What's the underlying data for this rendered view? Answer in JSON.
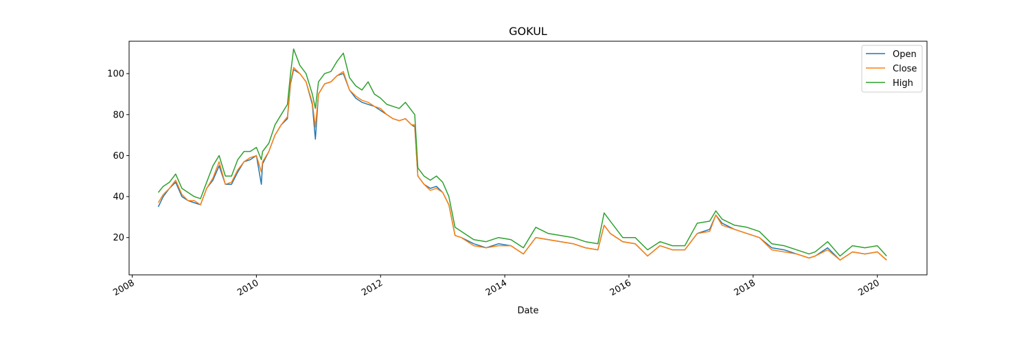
{
  "chart_data": {
    "type": "line",
    "title": "GOKUL",
    "xlabel": "Date",
    "ylabel": "",
    "x_ticks": [
      "2008",
      "2010",
      "2012",
      "2014",
      "2016",
      "2018",
      "2020"
    ],
    "y_ticks": [
      "20",
      "40",
      "60",
      "80",
      "100"
    ],
    "xlim": [
      2007.95,
      2020.8
    ],
    "ylim": [
      1.8,
      115.8
    ],
    "grid": false,
    "legend_position": "top-right",
    "x": [
      2008.42,
      2008.5,
      2008.6,
      2008.7,
      2008.8,
      2008.9,
      2009.0,
      2009.1,
      2009.2,
      2009.3,
      2009.4,
      2009.5,
      2009.6,
      2009.7,
      2009.8,
      2009.9,
      2010.0,
      2010.08,
      2010.1,
      2010.2,
      2010.3,
      2010.4,
      2010.5,
      2010.55,
      2010.6,
      2010.7,
      2010.8,
      2010.9,
      2010.95,
      2011.0,
      2011.1,
      2011.2,
      2011.3,
      2011.4,
      2011.5,
      2011.6,
      2011.7,
      2011.8,
      2011.9,
      2012.0,
      2012.1,
      2012.2,
      2012.3,
      2012.4,
      2012.5,
      2012.55,
      2012.6,
      2012.7,
      2012.8,
      2012.9,
      2013.0,
      2013.1,
      2013.2,
      2013.3,
      2013.5,
      2013.7,
      2013.9,
      2014.1,
      2014.3,
      2014.5,
      2014.7,
      2014.9,
      2015.1,
      2015.3,
      2015.5,
      2015.6,
      2015.7,
      2015.9,
      2016.1,
      2016.3,
      2016.5,
      2016.7,
      2016.9,
      2017.1,
      2017.3,
      2017.4,
      2017.5,
      2017.7,
      2017.9,
      2018.1,
      2018.3,
      2018.5,
      2018.7,
      2018.9,
      2019.0,
      2019.2,
      2019.4,
      2019.6,
      2019.8,
      2020.0,
      2020.15
    ],
    "series": [
      {
        "name": "Open",
        "color": "#1f77b4",
        "values": [
          35,
          40,
          44,
          47,
          40,
          38,
          37,
          36,
          44,
          48,
          55,
          46,
          46,
          52,
          57,
          58,
          60,
          46,
          56,
          62,
          70,
          75,
          78,
          95,
          102,
          100,
          96,
          85,
          68,
          90,
          95,
          96,
          99,
          100,
          92,
          88,
          86,
          85,
          84,
          82,
          80,
          78,
          77,
          78,
          75,
          74,
          50,
          46,
          44,
          45,
          42,
          36,
          21,
          20,
          17,
          15,
          17,
          16,
          12,
          20,
          19,
          18,
          17,
          15,
          14,
          26,
          22,
          18,
          17,
          11,
          16,
          14,
          14,
          22,
          24,
          31,
          27,
          24,
          22,
          20,
          15,
          14,
          12,
          10,
          11,
          15,
          9,
          13,
          12,
          13,
          9
        ]
      },
      {
        "name": "Close",
        "color": "#ff7f0e",
        "values": [
          37,
          41,
          44,
          48,
          41,
          38,
          38,
          36,
          44,
          49,
          57,
          46,
          47,
          53,
          57,
          59,
          60,
          52,
          57,
          62,
          70,
          75,
          79,
          96,
          103,
          100,
          96,
          86,
          74,
          90,
          95,
          96,
          99,
          101,
          92,
          89,
          87,
          86,
          84,
          83,
          80,
          78,
          77,
          78,
          75,
          75,
          50,
          46,
          43,
          44,
          42,
          36,
          21,
          20,
          16,
          15,
          16,
          16,
          12,
          20,
          19,
          18,
          17,
          15,
          14,
          26,
          22,
          18,
          17,
          11,
          16,
          14,
          14,
          22,
          23,
          31,
          26,
          24,
          22,
          20,
          14,
          13,
          12,
          10,
          11,
          14,
          9,
          13,
          12,
          13,
          9
        ]
      },
      {
        "name": "High",
        "color": "#2ca02c",
        "values": [
          42,
          45,
          47,
          51,
          44,
          42,
          40,
          39,
          47,
          55,
          60,
          50,
          50,
          58,
          62,
          62,
          64,
          58,
          62,
          66,
          75,
          80,
          85,
          100,
          112,
          104,
          100,
          90,
          83,
          96,
          100,
          101,
          106,
          110,
          98,
          94,
          92,
          96,
          90,
          88,
          85,
          84,
          83,
          86,
          82,
          80,
          54,
          50,
          48,
          50,
          47,
          40,
          25,
          23,
          19,
          18,
          20,
          19,
          15,
          25,
          22,
          21,
          20,
          18,
          17,
          32,
          28,
          20,
          20,
          14,
          18,
          16,
          16,
          27,
          28,
          33,
          29,
          26,
          25,
          23,
          17,
          16,
          14,
          12,
          13,
          18,
          11,
          16,
          15,
          16,
          11
        ]
      }
    ]
  }
}
